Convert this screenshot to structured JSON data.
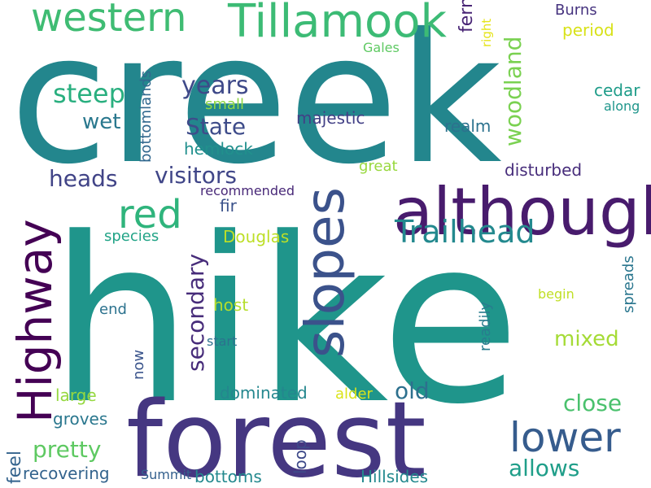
{
  "words": [
    {
      "text": "creek",
      "color": "#23868d"
    },
    {
      "text": "hike",
      "color": "#1f958b"
    },
    {
      "text": "forest",
      "color": "#453781"
    },
    {
      "text": "although",
      "color": "#481b6d"
    },
    {
      "text": "Tillamook",
      "color": "#3cbb75"
    },
    {
      "text": "western",
      "color": "#3fbc73"
    },
    {
      "text": "slopes",
      "color": "#3b528b"
    },
    {
      "text": "Highway",
      "color": "#440154"
    },
    {
      "text": "red",
      "color": "#2fb47c"
    },
    {
      "text": "lower",
      "color": "#365c8d"
    },
    {
      "text": "Trailhead",
      "color": "#23898e"
    },
    {
      "text": "woodland",
      "color": "#7ad151"
    },
    {
      "text": "steep",
      "color": "#29af7f"
    },
    {
      "text": "years",
      "color": "#3e4989"
    },
    {
      "text": "State",
      "color": "#3e4c8a"
    },
    {
      "text": "wet",
      "color": "#2a788e"
    },
    {
      "text": "visitors",
      "color": "#404688"
    },
    {
      "text": "heads",
      "color": "#414487"
    },
    {
      "text": "secondary",
      "color": "#472c7a"
    },
    {
      "text": "mixed",
      "color": "#a5db36"
    },
    {
      "text": "old",
      "color": "#2d708e"
    },
    {
      "text": "close",
      "color": "#4ac16d"
    },
    {
      "text": "allows",
      "color": "#1f9e89"
    },
    {
      "text": "pretty",
      "color": "#5ec962"
    },
    {
      "text": "feel",
      "color": "#33638d"
    },
    {
      "text": "fern",
      "color": "#482475"
    },
    {
      "text": "majestic",
      "color": "#424086"
    },
    {
      "text": "realm",
      "color": "#2c728e"
    },
    {
      "text": "cedar",
      "color": "#1e9c89"
    },
    {
      "text": "disturbed",
      "color": "#472d7b"
    },
    {
      "text": "hemlock",
      "color": "#21908d"
    },
    {
      "text": "small",
      "color": "#8fd744"
    },
    {
      "text": "great",
      "color": "#98d83e"
    },
    {
      "text": "bottomlands",
      "color": "#31688e"
    },
    {
      "text": "fir",
      "color": "#3b528b"
    },
    {
      "text": "recommended",
      "color": "#482878"
    },
    {
      "text": "Douglas",
      "color": "#bddf26"
    },
    {
      "text": "species",
      "color": "#20a386"
    },
    {
      "text": "spreads",
      "color": "#2a768e"
    },
    {
      "text": "end",
      "color": "#2c728e"
    },
    {
      "text": "host",
      "color": "#b5de2b"
    },
    {
      "text": "readily",
      "color": "#287c8e"
    },
    {
      "text": "begin",
      "color": "#c0df25"
    },
    {
      "text": "now",
      "color": "#3a548c"
    },
    {
      "text": "start",
      "color": "#2c728e"
    },
    {
      "text": "dominated",
      "color": "#24878e"
    },
    {
      "text": "alder",
      "color": "#dae319"
    },
    {
      "text": "large",
      "color": "#95d840"
    },
    {
      "text": "groves",
      "color": "#2a778e"
    },
    {
      "text": "loop",
      "color": "#3e4a89"
    },
    {
      "text": "recovering",
      "color": "#33638d"
    },
    {
      "text": "Summit",
      "color": "#34608d"
    },
    {
      "text": "bottoms",
      "color": "#23898e"
    },
    {
      "text": "Hillsides",
      "color": "#23898e"
    },
    {
      "text": "Burns",
      "color": "#46337f"
    },
    {
      "text": "period",
      "color": "#d8e219"
    },
    {
      "text": "right",
      "color": "#e5e419"
    },
    {
      "text": "along",
      "color": "#1f968b"
    },
    {
      "text": "Gales",
      "color": "#5ec962"
    }
  ]
}
